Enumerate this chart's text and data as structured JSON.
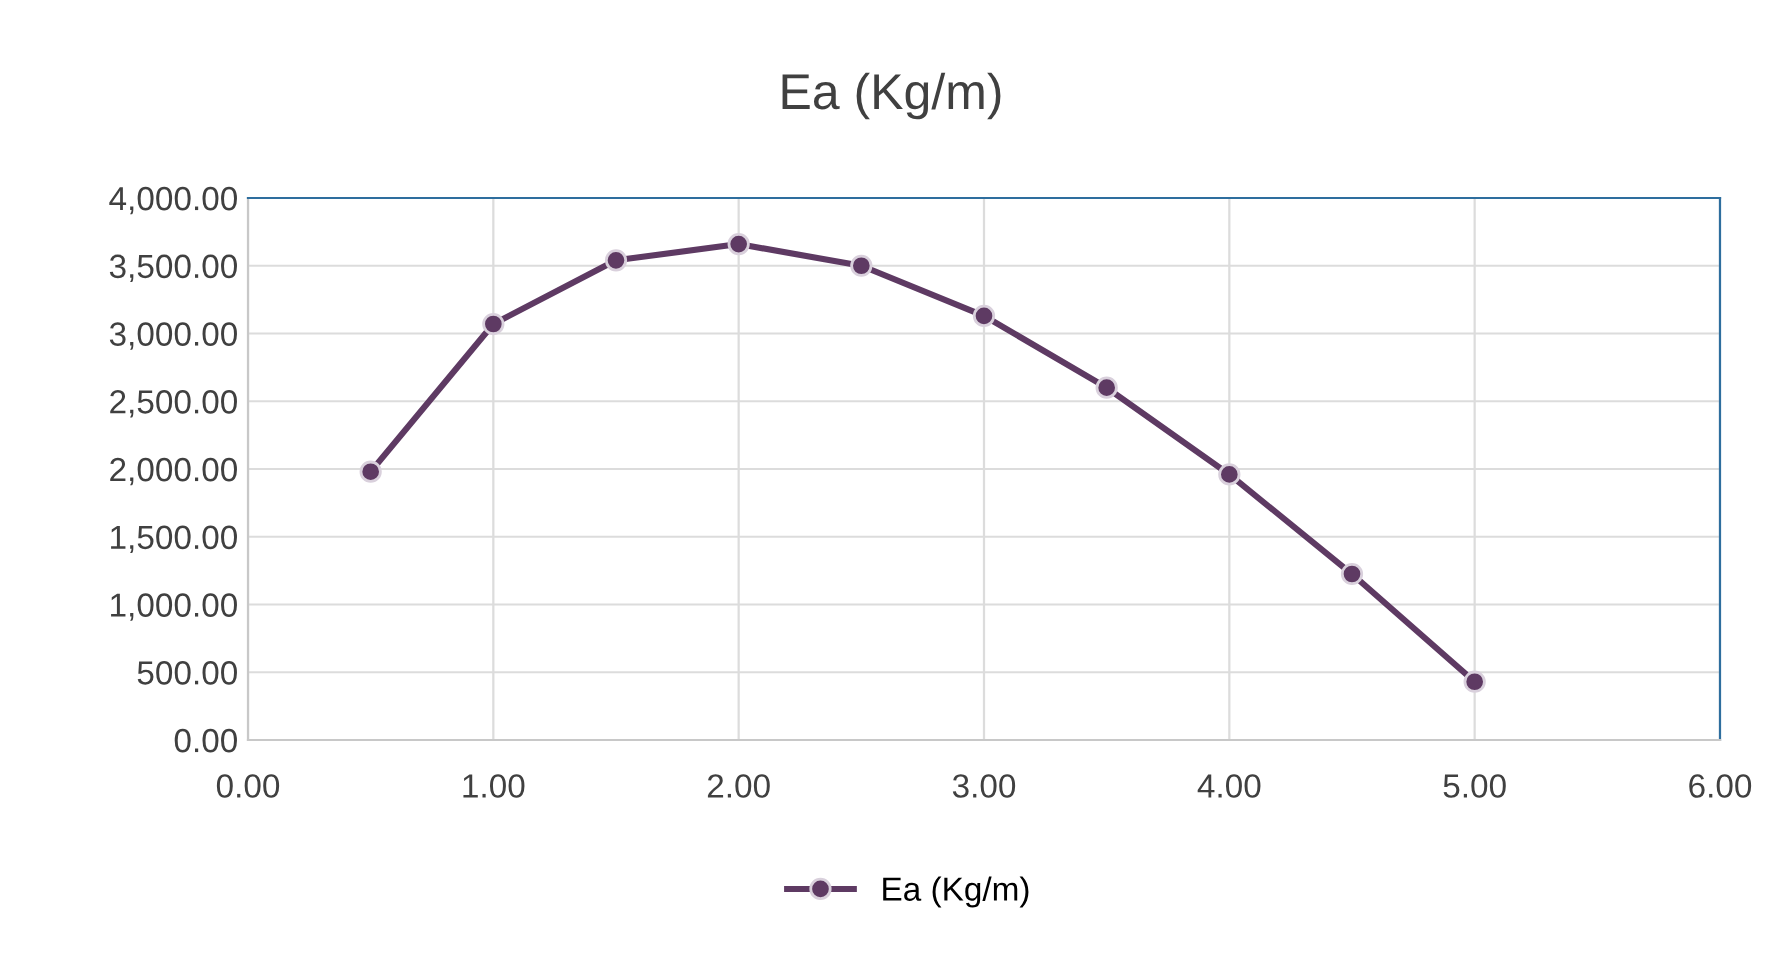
{
  "chart_data": {
    "type": "line",
    "title": "Ea (Kg/m)",
    "x": [
      0.5,
      1.0,
      1.5,
      2.0,
      2.5,
      3.0,
      3.5,
      4.0,
      4.5,
      5.0
    ],
    "series": [
      {
        "name": "Ea (Kg/m)",
        "color": "#5e3a63",
        "values": [
          1980,
          3070,
          3540,
          3660,
          3500,
          3130,
          2600,
          1960,
          1225,
          430
        ]
      }
    ],
    "xlim": [
      0,
      6
    ],
    "xticks": [
      {
        "value": 0,
        "label": "0.00"
      },
      {
        "value": 1,
        "label": "1.00"
      },
      {
        "value": 2,
        "label": "2.00"
      },
      {
        "value": 3,
        "label": "3.00"
      },
      {
        "value": 4,
        "label": "4.00"
      },
      {
        "value": 5,
        "label": "5.00"
      },
      {
        "value": 6,
        "label": "6.00"
      }
    ],
    "ylim": [
      0,
      4000
    ],
    "yticks": [
      {
        "value": 0,
        "label": "0.00"
      },
      {
        "value": 500,
        "label": "500.00"
      },
      {
        "value": 1000,
        "label": "1,000.00"
      },
      {
        "value": 1500,
        "label": "1,500.00"
      },
      {
        "value": 2000,
        "label": "2,000.00"
      },
      {
        "value": 2500,
        "label": "2,500.00"
      },
      {
        "value": 3000,
        "label": "3,000.00"
      },
      {
        "value": 3500,
        "label": "3,500.00"
      },
      {
        "value": 4000,
        "label": "4,000.00"
      }
    ],
    "grid": true,
    "legend": "bottom",
    "marker": "circle",
    "line_style": "solid"
  }
}
